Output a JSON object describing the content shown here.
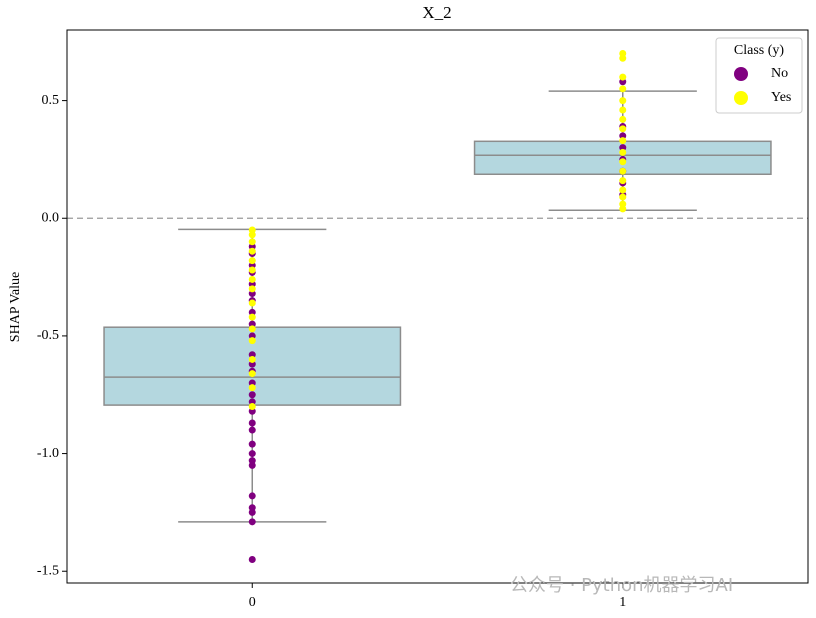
{
  "chart_data": {
    "type": "box",
    "title": "X_2",
    "ylabel": "SHAP Value",
    "categories": [
      "0",
      "1"
    ],
    "ylim": [
      -1.55,
      0.8
    ],
    "yticks": [
      -1.5,
      {
        "value": -1.0,
        "label": "-1.0"
      },
      -0.5,
      {
        "value": 0,
        "label": "0.0"
      },
      0.5
    ],
    "xlim": [
      -0.5,
      1.5
    ],
    "hline": 0,
    "box_color": "#b4d7df",
    "box_edge": "#8c8c8c",
    "boxes": [
      {
        "whislo": -1.29,
        "q1": -0.794,
        "med": -0.675,
        "q3": -0.463,
        "whishi": -0.047
      },
      {
        "whislo": 0.034,
        "q1": 0.187,
        "med": 0.268,
        "q3": 0.327,
        "whishi": 0.54
      }
    ],
    "legend_title": "Class (y)",
    "legend_loc": "upper right",
    "series": [
      {
        "name": "No",
        "color": "#800080",
        "values": [
          [
            -0.12,
            -0.15,
            -0.2,
            -0.23,
            -0.28,
            -0.32,
            -0.35,
            -0.4,
            -0.45,
            -0.5,
            -0.58,
            -0.62,
            -0.65,
            -0.7,
            -0.75,
            -0.78,
            -0.82,
            -0.87,
            -0.9,
            -0.96,
            -1.0,
            -1.03,
            -1.05,
            -1.18,
            -1.23,
            -1.25,
            -1.29,
            -1.45
          ],
          [
            0.58,
            0.39,
            0.35,
            0.3,
            0.25,
            0.2,
            0.15,
            0.1
          ]
        ]
      },
      {
        "name": "Yes",
        "color": "#ffff00",
        "values": [
          [
            -0.05,
            -0.07,
            -0.1,
            -0.14,
            -0.18,
            -0.22,
            -0.26,
            -0.3,
            -0.36,
            -0.42,
            -0.47,
            -0.52,
            -0.6,
            -0.66,
            -0.72,
            -0.8
          ],
          [
            0.7,
            0.68,
            0.6,
            0.55,
            0.5,
            0.46,
            0.42,
            0.38,
            0.33,
            0.28,
            0.24,
            0.2,
            0.16,
            0.12,
            0.09,
            0.06,
            0.04
          ]
        ]
      }
    ],
    "watermark": "公众号 · Python机器学习AI"
  }
}
